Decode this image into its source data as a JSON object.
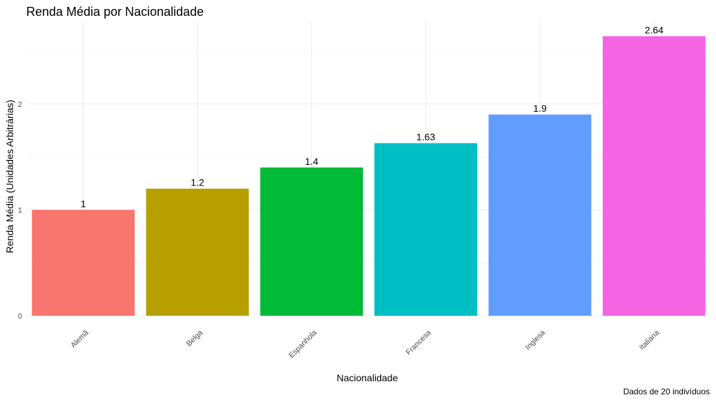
{
  "chart_data": {
    "type": "bar",
    "title": "Renda Média por Nacionalidade",
    "xlabel": "Nacionalidade",
    "ylabel": "Renda Média (Unidades Arbitrárias)",
    "caption": "Dados de 20 indivíduos",
    "categories": [
      "Alemã",
      "Belga",
      "Espanhola",
      "Francesa",
      "Inglesa",
      "Italiana"
    ],
    "values": [
      1,
      1.2,
      1.4,
      1.63,
      1.9,
      2.64
    ],
    "value_labels": [
      "1",
      "1.2",
      "1.4",
      "1.63",
      "1.9",
      "2.64"
    ],
    "colors": [
      "#F8766D",
      "#B79F00",
      "#00BA38",
      "#00BFC4",
      "#619CFF",
      "#F564E3"
    ],
    "yticks": [
      0,
      1,
      2
    ],
    "ytick_labels": [
      "0",
      "1",
      "2"
    ],
    "ylim": [
      0,
      2.64
    ],
    "grid": true,
    "legend": "none"
  }
}
